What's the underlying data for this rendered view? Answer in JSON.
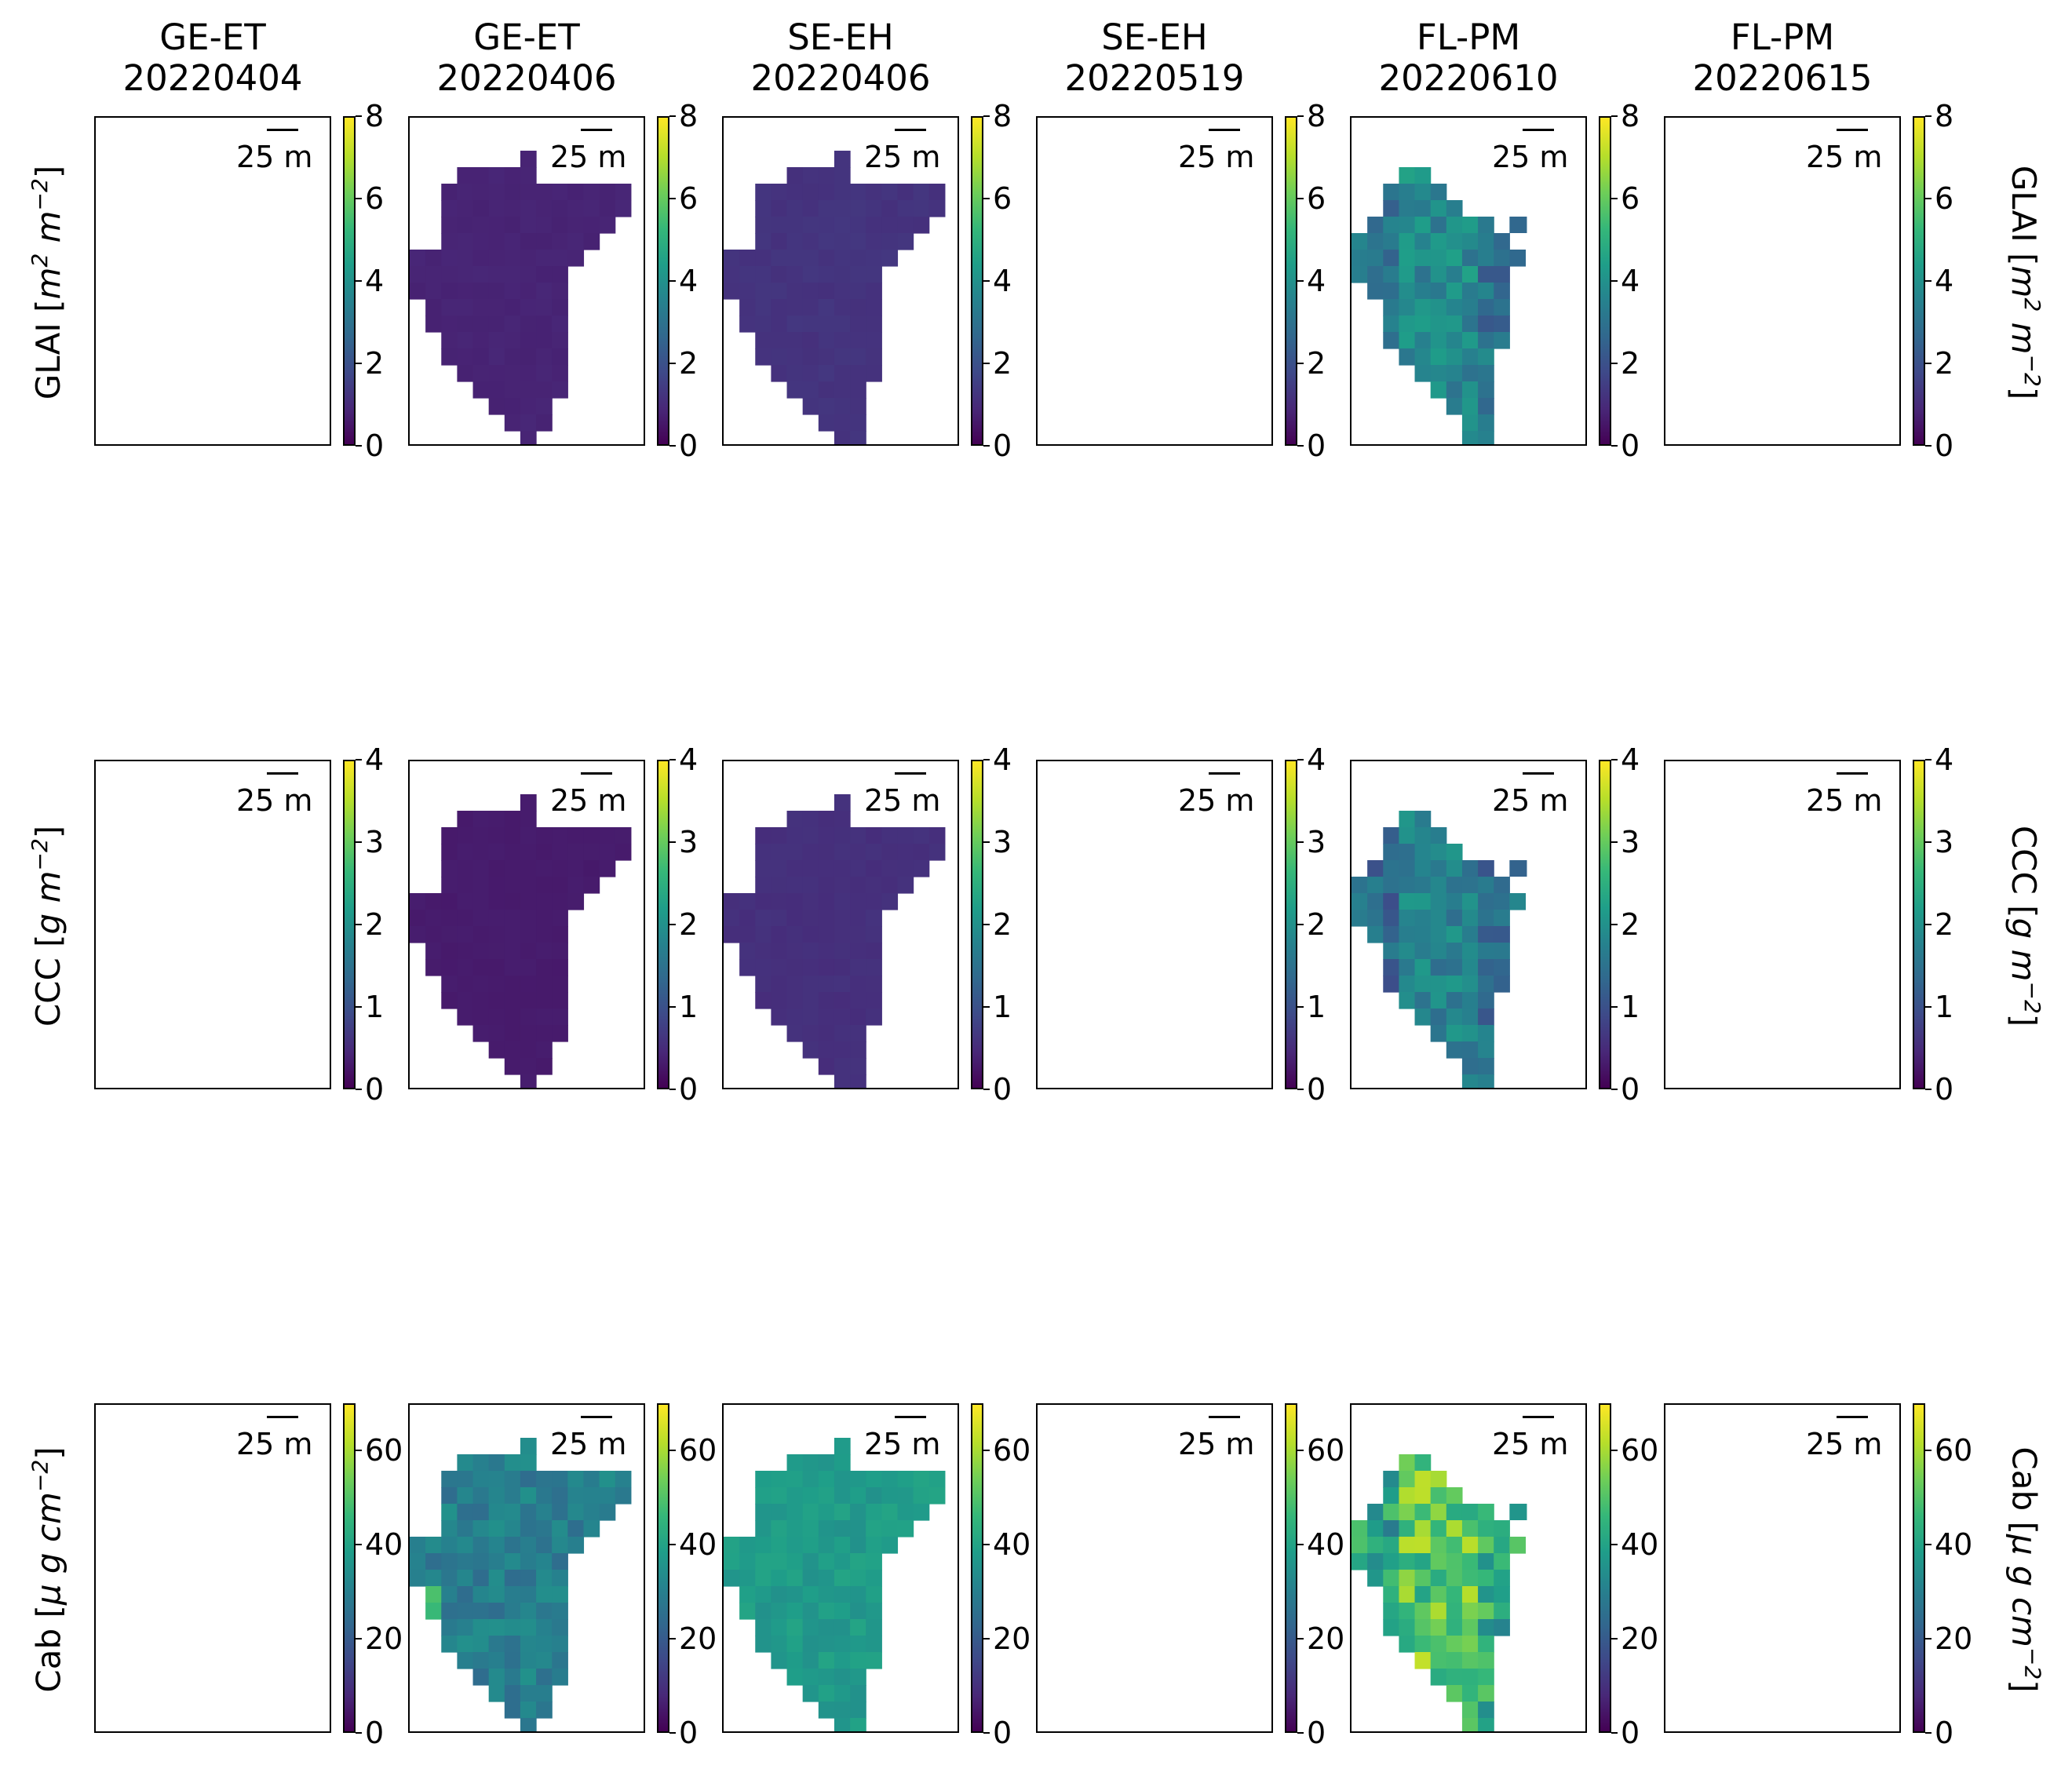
{
  "columns": [
    {
      "site": "GE-ET",
      "date": "20220404"
    },
    {
      "site": "GE-ET",
      "date": "20220406"
    },
    {
      "site": "SE-EH",
      "date": "20220406"
    },
    {
      "site": "SE-EH",
      "date": "20220519"
    },
    {
      "site": "FL-PM",
      "date": "20220610"
    },
    {
      "site": "FL-PM",
      "date": "20220615"
    }
  ],
  "rows": [
    {
      "variable": "GLAI",
      "unit_parts": [
        "[",
        "m",
        "2",
        " m",
        "−2",
        "]"
      ],
      "ticks": [
        "0",
        "2",
        "4",
        "6",
        "8"
      ],
      "vmin": 0,
      "vmax": 8
    },
    {
      "variable": "CCC",
      "unit_parts": [
        "[",
        "g m",
        "−2",
        "",
        "",
        "]"
      ],
      "ticks": [
        "0",
        "1",
        "2",
        "3",
        "4"
      ],
      "vmin": 0,
      "vmax": 4
    },
    {
      "variable": "Cab",
      "unit_parts": [
        "[",
        "μ g cm",
        "−2",
        "",
        "",
        "]"
      ],
      "ticks": [
        "0",
        "20",
        "40",
        "60"
      ],
      "vmin": 0,
      "vmax": 70
    }
  ],
  "scale_bar_label": "25 m",
  "colormap": "viridis",
  "chart_data": {
    "type": "heatmap",
    "description_units": "values are per-pixel estimates in each row's units; empty panels indicate no data",
    "panels": {
      "GLAI": {
        "20220404 GE-ET": null,
        "20220406 GE-ET": 0.8,
        "20220406 SE-EH": 1.2,
        "20220519 SE-EH": null,
        "20220610 FL-PM": 3.8,
        "20220615 FL-PM": null
      },
      "CCC": {
        "20220404 GE-ET": null,
        "20220406 GE-ET": 0.3,
        "20220406 SE-EH": 0.55,
        "20220519 SE-EH": null,
        "20220610 FL-PM": 1.8,
        "20220615 FL-PM": null
      },
      "Cab": {
        "20220404 GE-ET": null,
        "20220406 GE-ET": 30,
        "20220406 SE-EH": 38,
        "20220519 SE-EH": null,
        "20220610 FL-PM": 52,
        "20220615 FL-PM": null
      }
    }
  }
}
